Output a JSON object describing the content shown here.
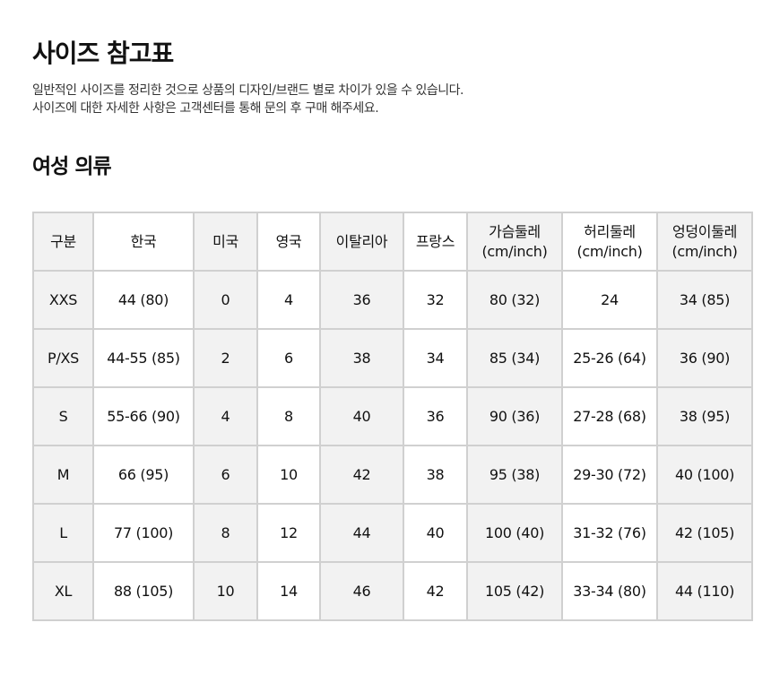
{
  "title": "사이즈 참고표",
  "description": [
    "일반적인 사이즈를 정리한 것으로 상품의 디자인/브랜드 별로 차이가 있을 수 있습니다.",
    "사이즈에 대한 자세한 사항은 고객센터를 통해 문의 후 구매 해주세요."
  ],
  "section_title": "여성 의류",
  "table": {
    "headers": [
      [
        "구분",
        ""
      ],
      [
        "한국",
        ""
      ],
      [
        "미국",
        ""
      ],
      [
        "영국",
        ""
      ],
      [
        "이탈리아",
        ""
      ],
      [
        "프랑스",
        ""
      ],
      [
        "가슴둘레",
        "(cm/inch)"
      ],
      [
        "허리둘레",
        "(cm/inch)"
      ],
      [
        "엉덩이둘레",
        "(cm/inch)"
      ]
    ],
    "rows": [
      [
        "XXS",
        "44 (80)",
        "0",
        "4",
        "36",
        "32",
        "80 (32)",
        "24",
        "34 (85)"
      ],
      [
        "P/XS",
        "44-55 (85)",
        "2",
        "6",
        "38",
        "34",
        "85 (34)",
        "25-26 (64)",
        "36 (90)"
      ],
      [
        "S",
        "55-66 (90)",
        "4",
        "8",
        "40",
        "36",
        "90 (36)",
        "27-28 (68)",
        "38 (95)"
      ],
      [
        "M",
        "66 (95)",
        "6",
        "10",
        "42",
        "38",
        "95 (38)",
        "29-30 (72)",
        "40 (100)"
      ],
      [
        "L",
        "77 (100)",
        "8",
        "12",
        "44",
        "40",
        "100 (40)",
        "31-32 (76)",
        "42 (105)"
      ],
      [
        "XL",
        "88 (105)",
        "10",
        "14",
        "46",
        "42",
        "105 (42)",
        "33-34 (80)",
        "44 (110)"
      ]
    ]
  }
}
